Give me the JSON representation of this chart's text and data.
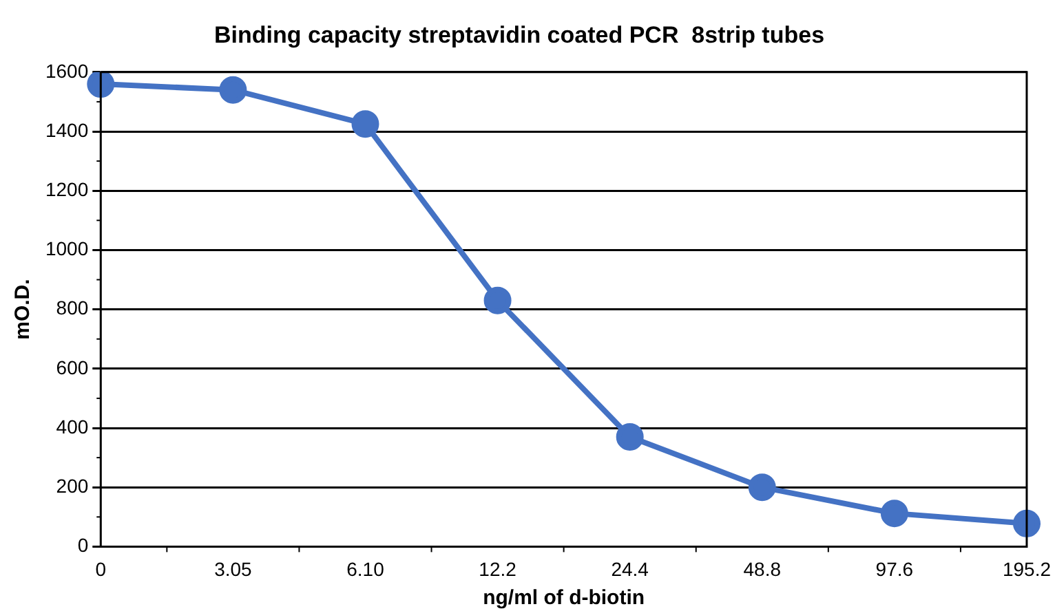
{
  "chart_data": {
    "type": "line",
    "title": "Binding capacity streptavidin coated PCR  8strip tubes",
    "xlabel": "ng/ml of d-biotin",
    "ylabel": "mO.D.",
    "categories": [
      "0",
      "3.05",
      "6.10",
      "12.2",
      "24.4",
      "48.8",
      "97.6",
      "195.2"
    ],
    "series": [
      {
        "color": "#4472c4",
        "values": [
          1560,
          1540,
          1425,
          830,
          370,
          200,
          112,
          78
        ]
      }
    ],
    "ylim": [
      0,
      1600
    ],
    "yticks": [
      0,
      200,
      400,
      600,
      800,
      1000,
      1200,
      1400,
      1600
    ],
    "grid": "y",
    "legend": false,
    "marker": "circle",
    "line_style": "solid"
  }
}
